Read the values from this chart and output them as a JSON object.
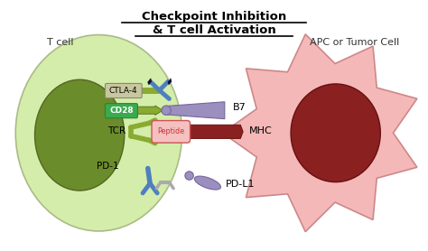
{
  "title_line1": "Checkpoint Inhibition",
  "title_line2": "& T cell Activation",
  "bg_color": "#ffffff",
  "tcell_label": "T cell",
  "apc_label": "APC or Tumor Cell",
  "tcell_outer_color": "#d4edaa",
  "tcell_outer_edge": "#aabb88",
  "tcell_inner_color": "#6b8c2a",
  "tcell_inner_edge": "#556622",
  "apc_outer_color": "#f5b8b8",
  "apc_outer_edge": "#cc8888",
  "apc_inner_color": "#8b2020",
  "apc_inner_edge": "#661111",
  "label_ctla4": "CTLA-4",
  "label_cd28": "CD28",
  "label_tcr": "TCR",
  "label_pd1": "PD-1",
  "label_b7": "B7",
  "label_mhc": "MHC",
  "label_pdl1": "PD-L1",
  "label_peptide": "Peptide",
  "green_receptor_color": "#8aaa30",
  "green_receptor_edge": "#557722",
  "purple_receptor_color": "#9b8fbf",
  "purple_receptor_edge": "#776699",
  "blue_antibody_color": "#4f7fbf",
  "dark_tip_color": "#111133",
  "mhc_color": "#8b2020",
  "mhc_edge": "#661111",
  "peptide_box_color": "#f5c0c0",
  "peptide_box_edge": "#cc5555",
  "peptide_text_color": "#cc3333",
  "cd28_box_color": "#3aaa50",
  "cd28_box_edge": "#228833",
  "ctla4_box_color": "#c8c8a0",
  "ctla4_box_edge": "#888877",
  "gray_color": "#aaaaaa",
  "black": "#000000",
  "dark_gray": "#333333"
}
